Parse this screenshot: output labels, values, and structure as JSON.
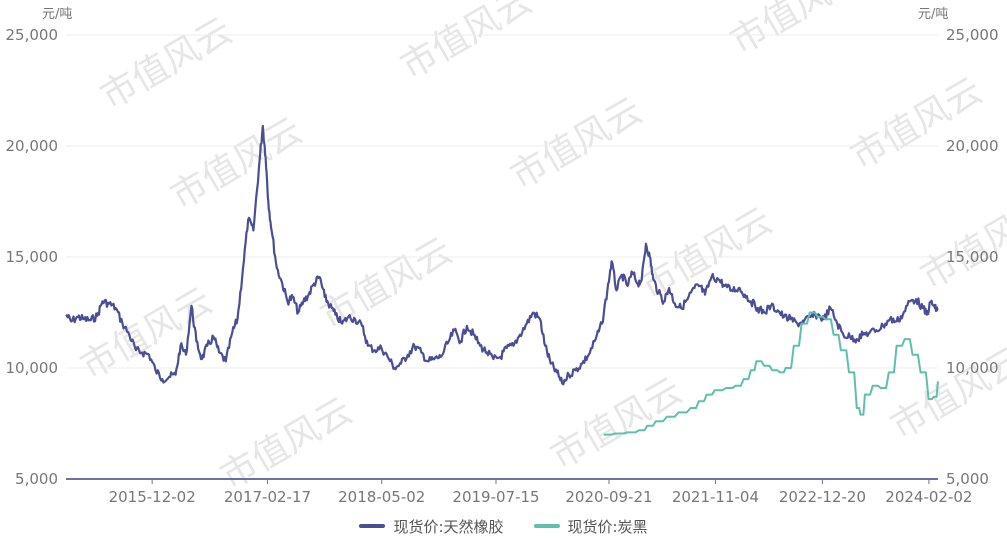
{
  "watermark": "市值风云",
  "chart_data": {
    "type": "line",
    "y_left_unit": "元/吨",
    "y_right_unit": "元/吨",
    "ylim": [
      5000,
      25000
    ],
    "y_ticks": [
      5000,
      10000,
      15000,
      20000,
      25000
    ],
    "y_tick_labels": [
      "5,000",
      "10,000",
      "15,000",
      "20,000",
      "25,000"
    ],
    "x_range": [
      "2015-01-05",
      "2024-03-08"
    ],
    "x_ticks": [
      "2015-12-02",
      "2017-02-17",
      "2018-05-02",
      "2019-07-15",
      "2020-09-21",
      "2021-11-04",
      "2022-12-20",
      "2024-02-02"
    ],
    "grid": true,
    "legend_position": "bottom",
    "series": [
      {
        "name": "现货价:天然橡胶",
        "color": "#4a4e96",
        "points": [
          [
            "2015-01-05",
            12400
          ],
          [
            "2015-01-25",
            12100
          ],
          [
            "2015-02-20",
            12300
          ],
          [
            "2015-03-15",
            12200
          ],
          [
            "2015-04-10",
            12150
          ],
          [
            "2015-05-05",
            12350
          ],
          [
            "2015-05-25",
            13000
          ],
          [
            "2015-06-20",
            12900
          ],
          [
            "2015-07-15",
            12700
          ],
          [
            "2015-08-10",
            12000
          ],
          [
            "2015-09-05",
            11500
          ],
          [
            "2015-10-01",
            10800
          ],
          [
            "2015-10-25",
            10700
          ],
          [
            "2015-11-20",
            10600
          ],
          [
            "2015-12-15",
            9900
          ],
          [
            "2016-01-10",
            9500
          ],
          [
            "2016-02-05",
            9600
          ],
          [
            "2016-03-01",
            9700
          ],
          [
            "2016-03-20",
            11000
          ],
          [
            "2016-04-10",
            10600
          ],
          [
            "2016-05-01",
            12800
          ],
          [
            "2016-05-20",
            11200
          ],
          [
            "2016-06-10",
            10400
          ],
          [
            "2016-07-01",
            11000
          ],
          [
            "2016-07-25",
            11400
          ],
          [
            "2016-08-15",
            10700
          ],
          [
            "2016-09-10",
            10300
          ],
          [
            "2016-10-05",
            11600
          ],
          [
            "2016-10-25",
            12200
          ],
          [
            "2016-11-15",
            14500
          ],
          [
            "2016-12-05",
            16700
          ],
          [
            "2016-12-25",
            16200
          ],
          [
            "2017-01-15",
            19000
          ],
          [
            "2017-01-30",
            20900
          ],
          [
            "2017-02-10",
            19500
          ],
          [
            "2017-02-20",
            17500
          ],
          [
            "2017-03-05",
            16200
          ],
          [
            "2017-03-25",
            14500
          ],
          [
            "2017-04-15",
            13800
          ],
          [
            "2017-05-05",
            13000
          ],
          [
            "2017-05-25",
            13200
          ],
          [
            "2017-06-15",
            12500
          ],
          [
            "2017-07-05",
            13000
          ],
          [
            "2017-07-25",
            13300
          ],
          [
            "2017-08-15",
            13800
          ],
          [
            "2017-09-05",
            14100
          ],
          [
            "2017-09-25",
            13200
          ],
          [
            "2017-10-15",
            12800
          ],
          [
            "2017-11-05",
            12400
          ],
          [
            "2017-12-01",
            12000
          ],
          [
            "2017-12-25",
            12300
          ],
          [
            "2018-01-20",
            12200
          ],
          [
            "2018-02-15",
            11900
          ],
          [
            "2018-03-10",
            11000
          ],
          [
            "2018-04-05",
            10800
          ],
          [
            "2018-05-01",
            10900
          ],
          [
            "2018-05-25",
            10500
          ],
          [
            "2018-06-20",
            10000
          ],
          [
            "2018-07-15",
            10200
          ],
          [
            "2018-08-10",
            10600
          ],
          [
            "2018-09-05",
            11000
          ],
          [
            "2018-10-01",
            10700
          ],
          [
            "2018-10-25",
            10300
          ],
          [
            "2018-11-20",
            10400
          ],
          [
            "2018-12-15",
            10500
          ],
          [
            "2019-01-10",
            11100
          ],
          [
            "2019-02-05",
            11700
          ],
          [
            "2019-03-01",
            11200
          ],
          [
            "2019-03-25",
            11900
          ],
          [
            "2019-04-20",
            11500
          ],
          [
            "2019-05-15",
            11000
          ],
          [
            "2019-06-10",
            10700
          ],
          [
            "2019-07-05",
            10400
          ],
          [
            "2019-08-01",
            10500
          ],
          [
            "2019-08-25",
            10900
          ],
          [
            "2019-09-20",
            11000
          ],
          [
            "2019-10-15",
            11500
          ],
          [
            "2019-11-10",
            12000
          ],
          [
            "2019-12-05",
            12500
          ],
          [
            "2019-12-31",
            12200
          ],
          [
            "2020-01-20",
            11000
          ],
          [
            "2020-02-10",
            10200
          ],
          [
            "2020-03-05",
            9800
          ],
          [
            "2020-03-25",
            9300
          ],
          [
            "2020-04-20",
            9700
          ],
          [
            "2020-05-15",
            9900
          ],
          [
            "2020-06-10",
            10200
          ],
          [
            "2020-07-05",
            10600
          ],
          [
            "2020-08-01",
            11300
          ],
          [
            "2020-08-25",
            12000
          ],
          [
            "2020-09-15",
            13500
          ],
          [
            "2020-10-01",
            14800
          ],
          [
            "2020-10-20",
            13500
          ],
          [
            "2020-11-10",
            14200
          ],
          [
            "2020-12-01",
            13700
          ],
          [
            "2020-12-20",
            14300
          ],
          [
            "2021-01-10",
            13800
          ],
          [
            "2021-01-25",
            14000
          ],
          [
            "2021-02-10",
            15600
          ],
          [
            "2021-02-25",
            15000
          ],
          [
            "2021-03-10",
            14000
          ],
          [
            "2021-03-30",
            13400
          ],
          [
            "2021-04-20",
            13000
          ],
          [
            "2021-05-10",
            13600
          ],
          [
            "2021-06-01",
            12900
          ],
          [
            "2021-06-25",
            12700
          ],
          [
            "2021-07-20",
            13100
          ],
          [
            "2021-08-15",
            13600
          ],
          [
            "2021-09-05",
            13700
          ],
          [
            "2021-09-25",
            13300
          ],
          [
            "2021-10-20",
            14100
          ],
          [
            "2021-11-15",
            14000
          ],
          [
            "2021-12-10",
            13700
          ],
          [
            "2022-01-05",
            13500
          ],
          [
            "2022-02-01",
            13600
          ],
          [
            "2022-02-25",
            13300
          ],
          [
            "2022-03-20",
            13000
          ],
          [
            "2022-04-15",
            12700
          ],
          [
            "2022-05-10",
            12500
          ],
          [
            "2022-06-05",
            12800
          ],
          [
            "2022-07-01",
            12600
          ],
          [
            "2022-07-25",
            12300
          ],
          [
            "2022-08-20",
            12200
          ],
          [
            "2022-09-15",
            12000
          ],
          [
            "2022-10-10",
            12100
          ],
          [
            "2022-11-05",
            12300
          ],
          [
            "2022-12-01",
            12400
          ],
          [
            "2022-12-25",
            12200
          ],
          [
            "2023-01-20",
            12700
          ],
          [
            "2023-02-15",
            12000
          ],
          [
            "2023-03-10",
            11500
          ],
          [
            "2023-04-05",
            11400
          ],
          [
            "2023-05-01",
            11300
          ],
          [
            "2023-05-25",
            11500
          ],
          [
            "2023-06-20",
            11600
          ],
          [
            "2023-07-15",
            11700
          ],
          [
            "2023-08-10",
            11900
          ],
          [
            "2023-09-05",
            12200
          ],
          [
            "2023-10-01",
            12100
          ],
          [
            "2023-10-25",
            12400
          ],
          [
            "2023-11-20",
            13000
          ],
          [
            "2023-12-15",
            13100
          ],
          [
            "2024-01-10",
            12700
          ],
          [
            "2024-01-25",
            12400
          ],
          [
            "2024-02-10",
            13000
          ],
          [
            "2024-02-25",
            12700
          ],
          [
            "2024-03-08",
            12600
          ]
        ]
      },
      {
        "name": "现货价:炭黑",
        "color": "#5fbfad",
        "points": [
          [
            "2020-09-01",
            7000
          ],
          [
            "2020-10-15",
            7050
          ],
          [
            "2020-12-01",
            7100
          ],
          [
            "2021-01-15",
            7200
          ],
          [
            "2021-02-15",
            7400
          ],
          [
            "2021-03-20",
            7600
          ],
          [
            "2021-05-01",
            7800
          ],
          [
            "2021-06-15",
            8000
          ],
          [
            "2021-08-01",
            8200
          ],
          [
            "2021-09-01",
            8500
          ],
          [
            "2021-10-01",
            8800
          ],
          [
            "2021-11-01",
            9000
          ],
          [
            "2021-12-15",
            9100
          ],
          [
            "2022-01-20",
            9200
          ],
          [
            "2022-02-20",
            9500
          ],
          [
            "2022-03-20",
            9900
          ],
          [
            "2022-04-10",
            10300
          ],
          [
            "2022-05-10",
            10100
          ],
          [
            "2022-06-10",
            9900
          ],
          [
            "2022-07-10",
            9800
          ],
          [
            "2022-08-01",
            10000
          ],
          [
            "2022-09-01",
            11000
          ],
          [
            "2022-10-01",
            12000
          ],
          [
            "2022-11-01",
            12500
          ],
          [
            "2022-12-01",
            12300
          ],
          [
            "2023-01-01",
            12200
          ],
          [
            "2023-02-01",
            11500
          ],
          [
            "2023-03-01",
            10800
          ],
          [
            "2023-04-01",
            9800
          ],
          [
            "2023-05-01",
            8200
          ],
          [
            "2023-05-15",
            7900
          ],
          [
            "2023-06-01",
            8800
          ],
          [
            "2023-07-01",
            9200
          ],
          [
            "2023-08-01",
            9100
          ],
          [
            "2023-09-01",
            9800
          ],
          [
            "2023-10-01",
            11000
          ],
          [
            "2023-11-01",
            11300
          ],
          [
            "2023-12-01",
            10600
          ],
          [
            "2024-01-01",
            9800
          ],
          [
            "2024-02-01",
            8600
          ],
          [
            "2024-02-20",
            8700
          ],
          [
            "2024-03-08",
            9400
          ]
        ]
      }
    ]
  }
}
